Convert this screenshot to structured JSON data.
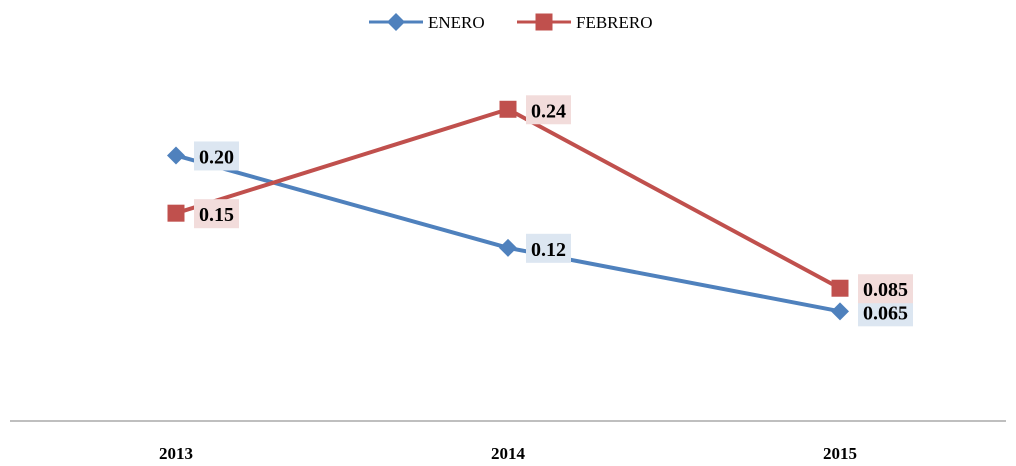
{
  "chart_data": {
    "type": "line",
    "title": "",
    "xlabel": "",
    "ylabel": "",
    "categories": [
      "2013",
      "2014",
      "2015"
    ],
    "series": [
      {
        "name": "ENERO",
        "values": [
          0.2,
          0.12,
          0.065
        ],
        "labels": [
          "0.20",
          "0.12",
          "0.065"
        ],
        "color": "#4F81BD",
        "label_bg": "#DCE6F1",
        "marker": "diamond"
      },
      {
        "name": "FEBRERO",
        "values": [
          0.15,
          0.24,
          0.085
        ],
        "labels": [
          "0.15",
          "0.24",
          "0.085"
        ],
        "color": "#C0504D",
        "label_bg": "#F2DCDB",
        "marker": "square"
      }
    ],
    "ylim": [
      -0.03,
      0.3
    ],
    "grid": false,
    "y_axis_visible": false,
    "legend_position": "top",
    "axis_color": "#999999"
  }
}
